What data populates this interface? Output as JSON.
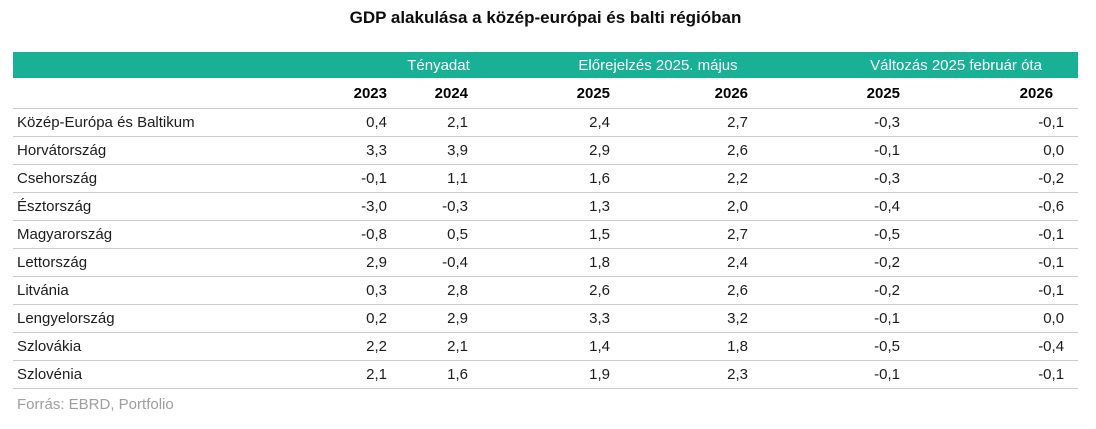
{
  "title": "GDP alakulása a közép-európai és balti régióban",
  "source": "Forrás: EBRD, Portfolio",
  "colors": {
    "header_teal": "#19b196",
    "header_text": "#ffffff",
    "body_text": "#1c1c1c",
    "source_text": "#9e9e9e",
    "divider": "#cccccc"
  },
  "table": {
    "group_headers": [
      "Tényadat",
      "Előrejelzés 2025. május",
      "Változás 2025 február óta"
    ],
    "year_headers": [
      "2023",
      "2024",
      "2025",
      "2026",
      "2025",
      "2026"
    ],
    "rows": [
      {
        "name": "Közép-Európa és Baltikum",
        "values": [
          "0,4",
          "2,1",
          "2,4",
          "2,7",
          "-0,3",
          "-0,1"
        ]
      },
      {
        "name": "Horvátország",
        "values": [
          "3,3",
          "3,9",
          "2,9",
          "2,6",
          "-0,1",
          "0,0"
        ]
      },
      {
        "name": "Csehország",
        "values": [
          "-0,1",
          "1,1",
          "1,6",
          "2,2",
          "-0,3",
          "-0,2"
        ]
      },
      {
        "name": "Észtország",
        "values": [
          "-3,0",
          "-0,3",
          "1,3",
          "2,0",
          "-0,4",
          "-0,6"
        ]
      },
      {
        "name": "Magyarország",
        "values": [
          "-0,8",
          "0,5",
          "1,5",
          "2,7",
          "-0,5",
          "-0,1"
        ]
      },
      {
        "name": "Lettország",
        "values": [
          "2,9",
          "-0,4",
          "1,8",
          "2,4",
          "-0,2",
          "-0,1"
        ]
      },
      {
        "name": "Litvánia",
        "values": [
          "0,3",
          "2,8",
          "2,6",
          "2,6",
          "-0,2",
          "-0,1"
        ]
      },
      {
        "name": "Lengyelország",
        "values": [
          "0,2",
          "2,9",
          "3,3",
          "3,2",
          "-0,1",
          "0,0"
        ]
      },
      {
        "name": "Szlovákia",
        "values": [
          "2,2",
          "2,1",
          "1,4",
          "1,8",
          "-0,5",
          "-0,4"
        ]
      },
      {
        "name": "Szlovénia",
        "values": [
          "2,1",
          "1,6",
          "1,9",
          "2,3",
          "-0,1",
          "-0,1"
        ]
      }
    ]
  },
  "chart_data": {
    "type": "table",
    "title": "GDP alakulása a közép-európai és balti régióban",
    "column_groups": [
      {
        "label": "Tényadat",
        "columns": [
          "2023",
          "2024"
        ]
      },
      {
        "label": "Előrejelzés 2025. május",
        "columns": [
          "2025",
          "2026"
        ]
      },
      {
        "label": "Változás 2025 február óta",
        "columns": [
          "2025",
          "2026"
        ]
      }
    ],
    "unit": "percent",
    "rows": [
      {
        "region": "Közép-Európa és Baltikum",
        "values": [
          0.4,
          2.1,
          2.4,
          2.7,
          -0.3,
          -0.1
        ]
      },
      {
        "region": "Horvátország",
        "values": [
          3.3,
          3.9,
          2.9,
          2.6,
          -0.1,
          0.0
        ]
      },
      {
        "region": "Csehország",
        "values": [
          -0.1,
          1.1,
          1.6,
          2.2,
          -0.3,
          -0.2
        ]
      },
      {
        "region": "Észtország",
        "values": [
          -3.0,
          -0.3,
          1.3,
          2.0,
          -0.4,
          -0.6
        ]
      },
      {
        "region": "Magyarország",
        "values": [
          -0.8,
          0.5,
          1.5,
          2.7,
          -0.5,
          -0.1
        ]
      },
      {
        "region": "Lettország",
        "values": [
          2.9,
          -0.4,
          1.8,
          2.4,
          -0.2,
          -0.1
        ]
      },
      {
        "region": "Litvánia",
        "values": [
          0.3,
          2.8,
          2.6,
          2.6,
          -0.2,
          -0.1
        ]
      },
      {
        "region": "Lengyelország",
        "values": [
          0.2,
          2.9,
          3.3,
          3.2,
          -0.1,
          0.0
        ]
      },
      {
        "region": "Szlovákia",
        "values": [
          2.2,
          2.1,
          1.4,
          1.8,
          -0.5,
          -0.4
        ]
      },
      {
        "region": "Szlovénia",
        "values": [
          2.1,
          1.6,
          1.9,
          2.3,
          -0.1,
          -0.1
        ]
      }
    ],
    "source": "Forrás: EBRD, Portfolio"
  }
}
